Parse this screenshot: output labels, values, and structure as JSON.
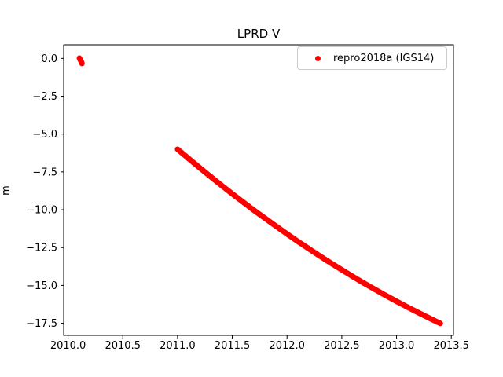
{
  "chart_data": {
    "type": "scatter",
    "title": "LPRD V",
    "xlabel": "",
    "ylabel": "m",
    "xlim": [
      2009.96,
      2013.52
    ],
    "ylim": [
      -18.3,
      0.9
    ],
    "x_ticks": [
      2010.0,
      2010.5,
      2011.0,
      2011.5,
      2012.0,
      2012.5,
      2013.0,
      2013.5
    ],
    "x_tick_labels": [
      "2010.0",
      "2010.5",
      "2011.0",
      "2011.5",
      "2012.0",
      "2012.5",
      "2013.0",
      "2013.5"
    ],
    "y_ticks": [
      0.0,
      -2.5,
      -5.0,
      -7.5,
      -10.0,
      -12.5,
      -15.0,
      -17.5
    ],
    "y_tick_labels": [
      "0.0",
      "−2.5",
      "−5.0",
      "−7.5",
      "−10.0",
      "−12.5",
      "−15.0",
      "−17.5"
    ],
    "grid": false,
    "marker": "dot",
    "marker_color": "#ff0000",
    "marker_radius_px": 3.5,
    "legend": {
      "position": "upper right",
      "entries": [
        {
          "label": "repro2018a (IGS14)",
          "color": "#ff0000"
        }
      ]
    },
    "series": [
      {
        "name": "repro2018a (IGS14)",
        "segments": [
          {
            "name": "early-cluster",
            "points": [
              [
                2010.104,
                0.02
              ],
              [
                2010.112,
                -0.1
              ],
              [
                2010.12,
                -0.22
              ],
              [
                2010.127,
                -0.34
              ]
            ]
          },
          {
            "name": "main-track",
            "points": [
              [
                2011.0,
                -6.0
              ],
              [
                2011.1,
                -6.61
              ],
              [
                2011.2,
                -7.21
              ],
              [
                2011.3,
                -7.8
              ],
              [
                2011.4,
                -8.38
              ],
              [
                2011.5,
                -8.95
              ],
              [
                2011.6,
                -9.5
              ],
              [
                2011.7,
                -10.05
              ],
              [
                2011.8,
                -10.57
              ],
              [
                2011.9,
                -11.09
              ],
              [
                2012.0,
                -11.6
              ],
              [
                2012.1,
                -12.1
              ],
              [
                2012.2,
                -12.58
              ],
              [
                2012.3,
                -13.06
              ],
              [
                2012.4,
                -13.52
              ],
              [
                2012.5,
                -13.97
              ],
              [
                2012.6,
                -14.41
              ],
              [
                2012.7,
                -14.84
              ],
              [
                2012.8,
                -15.25
              ],
              [
                2012.9,
                -15.66
              ],
              [
                2013.0,
                -16.05
              ],
              [
                2013.1,
                -16.43
              ],
              [
                2013.2,
                -16.8
              ],
              [
                2013.3,
                -17.16
              ],
              [
                2013.4,
                -17.51
              ]
            ]
          }
        ]
      }
    ]
  }
}
